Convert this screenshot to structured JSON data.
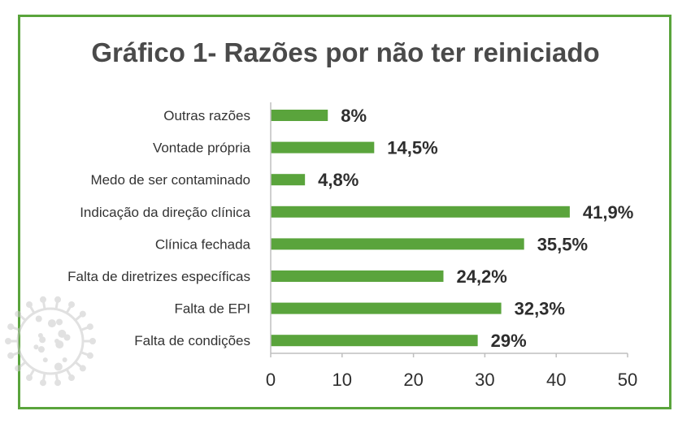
{
  "chart_data": {
    "type": "bar",
    "orientation": "horizontal",
    "title": "Gráfico 1- Razões por não ter reiniciado",
    "categories": [
      "Outras razões",
      "Vontade própria",
      "Medo de ser contaminado",
      "Indicação da direção clínica",
      "Clínica fechada",
      "Falta de diretrizes específicas",
      "Falta de EPI",
      "Falta de condições"
    ],
    "values": [
      8,
      14.5,
      4.8,
      41.9,
      35.5,
      24.2,
      32.3,
      29
    ],
    "data_labels": [
      "8%",
      "14,5%",
      "4,8%",
      "41,9%",
      "35,5%",
      "24,2%",
      "32,3%",
      "29%"
    ],
    "xlim": [
      0,
      50
    ],
    "xticks": [
      "0",
      "10",
      "20",
      "30",
      "40",
      "50"
    ],
    "xlabel": "",
    "ylabel": "",
    "grid": false,
    "bar_color": "#5aa43c",
    "frame_color": "#5aa43c"
  },
  "decoration": {
    "icon": "virus-icon",
    "color": "#c9c9c9"
  }
}
